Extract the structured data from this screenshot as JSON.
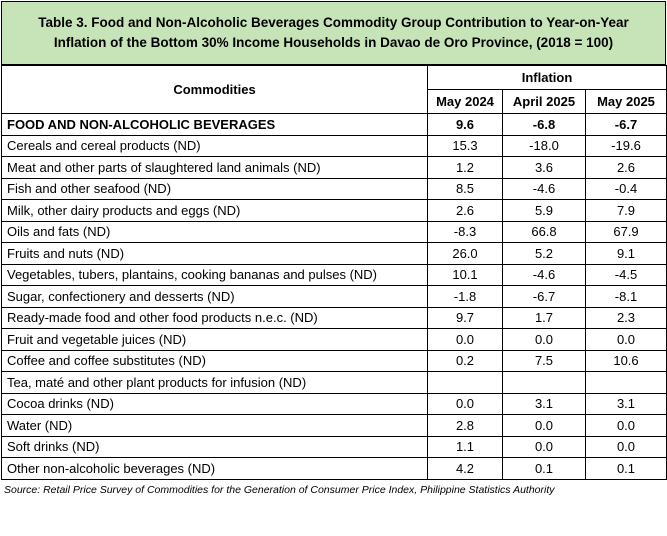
{
  "title": {
    "line1": "Table 3. Food and Non-Alcoholic Beverages Commodity Group Contribution to Year-on-Year",
    "line2": "Inflation of the Bottom 30% Income Households in Davao de Oro Province, (2018 = 100)"
  },
  "header": {
    "commodities": "Commodities",
    "inflation": "Inflation",
    "periods": [
      "May 2024",
      "April 2025",
      "May 2025"
    ]
  },
  "rows": [
    {
      "name": "FOOD AND NON-ALCOHOLIC BEVERAGES",
      "v": [
        "9.6",
        "-6.8",
        "-6.7"
      ],
      "bold": true
    },
    {
      "name": "Cereals and cereal products (ND)",
      "v": [
        "15.3",
        "-18.0",
        "-19.6"
      ]
    },
    {
      "name": "Meat and other parts of slaughtered land animals (ND)",
      "v": [
        "1.2",
        "3.6",
        "2.6"
      ]
    },
    {
      "name": "Fish and other seafood (ND)",
      "v": [
        "8.5",
        "-4.6",
        "-0.4"
      ]
    },
    {
      "name": "Milk, other dairy products and eggs (ND)",
      "v": [
        "2.6",
        "5.9",
        "7.9"
      ]
    },
    {
      "name": "Oils and fats (ND)",
      "v": [
        "-8.3",
        "66.8",
        "67.9"
      ]
    },
    {
      "name": "Fruits and nuts (ND)",
      "v": [
        "26.0",
        "5.2",
        "9.1"
      ]
    },
    {
      "name": "Vegetables, tubers, plantains, cooking bananas and pulses (ND)",
      "v": [
        "10.1",
        "-4.6",
        "-4.5"
      ]
    },
    {
      "name": "Sugar, confectionery and desserts (ND)",
      "v": [
        "-1.8",
        "-6.7",
        "-8.1"
      ]
    },
    {
      "name": "Ready-made food and other food products n.e.c. (ND)",
      "v": [
        "9.7",
        "1.7",
        "2.3"
      ]
    },
    {
      "name": "Fruit and vegetable juices (ND)",
      "v": [
        "0.0",
        "0.0",
        "0.0"
      ]
    },
    {
      "name": "Coffee and coffee substitutes (ND)",
      "v": [
        "0.2",
        "7.5",
        "10.6"
      ]
    },
    {
      "name": "Tea, maté and other plant products for infusion (ND)",
      "v": [
        "",
        "",
        ""
      ]
    },
    {
      "name": "Cocoa drinks (ND)",
      "v": [
        "0.0",
        "3.1",
        "3.1"
      ]
    },
    {
      "name": "Water (ND)",
      "v": [
        "2.8",
        "0.0",
        "0.0"
      ]
    },
    {
      "name": "Soft drinks (ND)",
      "v": [
        "1.1",
        "0.0",
        "0.0"
      ]
    },
    {
      "name": "Other non-alcoholic beverages (ND)",
      "v": [
        "4.2",
        "0.1",
        "0.1"
      ]
    }
  ],
  "source": "Source: Retail Price Survey of Commodities for the Generation of Consumer Price Index, Philippine Statistics Authority"
}
